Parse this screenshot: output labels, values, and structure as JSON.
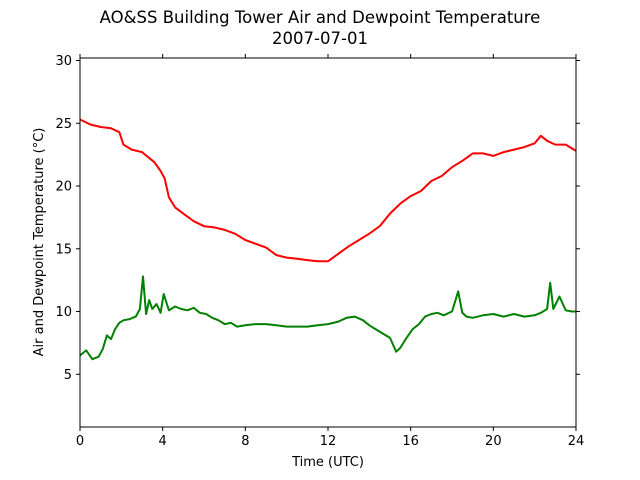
{
  "chart_data": {
    "type": "line",
    "title": "AO&SS Building Tower Air and Dewpoint Temperature",
    "subtitle": "2007-07-01",
    "xlabel": "Time (UTC)",
    "ylabel": "Air and Dewpoint Temperature (°C)",
    "xlim": [
      0,
      24
    ],
    "ylim": [
      0.8,
      30.2
    ],
    "xticks": [
      0,
      4,
      8,
      12,
      16,
      20,
      24
    ],
    "yticks": [
      5,
      10,
      15,
      20,
      25,
      30
    ],
    "grid": false,
    "colors": {
      "air": "#ff0000",
      "dewpoint": "#008000"
    },
    "series": [
      {
        "key": "air",
        "x": [
          0,
          0.25,
          0.5,
          1.0,
          1.5,
          1.9,
          2.1,
          2.5,
          3.0,
          3.3,
          3.6,
          3.9,
          4.1,
          4.3,
          4.6,
          5.0,
          5.5,
          6.0,
          6.5,
          7.0,
          7.5,
          8.0,
          8.5,
          9.0,
          9.5,
          10.0,
          10.5,
          11.0,
          11.5,
          12.0,
          12.5,
          13.0,
          13.5,
          14.0,
          14.5,
          15.0,
          15.5,
          16.0,
          16.5,
          17.0,
          17.5,
          18.0,
          18.5,
          19.0,
          19.5,
          20.0,
          20.5,
          21.0,
          21.5,
          22.0,
          22.3,
          22.6,
          23.0,
          23.5,
          24.0
        ],
        "y": [
          25.3,
          25.1,
          24.9,
          24.7,
          24.6,
          24.3,
          23.3,
          22.9,
          22.7,
          22.3,
          21.9,
          21.2,
          20.6,
          19.1,
          18.3,
          17.8,
          17.2,
          16.8,
          16.7,
          16.5,
          16.2,
          15.7,
          15.4,
          15.1,
          14.5,
          14.3,
          14.2,
          14.1,
          14.0,
          14.0,
          14.6,
          15.2,
          15.7,
          16.2,
          16.8,
          17.8,
          18.6,
          19.2,
          19.6,
          20.4,
          20.8,
          21.5,
          22.0,
          22.6,
          22.6,
          22.4,
          22.7,
          22.9,
          23.1,
          23.4,
          24.0,
          23.6,
          23.3,
          23.3,
          22.8
        ]
      },
      {
        "key": "dewpoint",
        "x": [
          0,
          0.3,
          0.6,
          0.9,
          1.1,
          1.3,
          1.5,
          1.7,
          1.9,
          2.1,
          2.4,
          2.7,
          2.9,
          3.05,
          3.2,
          3.35,
          3.5,
          3.7,
          3.9,
          4.05,
          4.3,
          4.6,
          4.9,
          5.2,
          5.5,
          5.8,
          6.1,
          6.4,
          6.7,
          7.0,
          7.3,
          7.6,
          8.0,
          8.5,
          9.0,
          9.5,
          10.0,
          10.5,
          11.0,
          11.5,
          12.0,
          12.5,
          12.9,
          13.3,
          13.7,
          14.0,
          14.3,
          14.6,
          15.0,
          15.3,
          15.5,
          15.8,
          16.1,
          16.4,
          16.7,
          17.0,
          17.3,
          17.6,
          18.0,
          18.3,
          18.5,
          18.7,
          19.0,
          19.5,
          20.0,
          20.5,
          21.0,
          21.5,
          22.0,
          22.3,
          22.6,
          22.75,
          22.9,
          23.2,
          23.5,
          23.8,
          24.0
        ],
        "y": [
          6.5,
          6.9,
          6.2,
          6.4,
          7.0,
          8.1,
          7.8,
          8.6,
          9.1,
          9.3,
          9.4,
          9.6,
          10.2,
          12.8,
          9.8,
          10.9,
          10.2,
          10.6,
          9.9,
          11.4,
          10.1,
          10.4,
          10.2,
          10.1,
          10.3,
          9.9,
          9.8,
          9.5,
          9.3,
          9.0,
          9.1,
          8.8,
          8.9,
          9.0,
          9.0,
          8.9,
          8.8,
          8.8,
          8.8,
          8.9,
          9.0,
          9.2,
          9.5,
          9.6,
          9.3,
          8.9,
          8.6,
          8.3,
          7.9,
          6.8,
          7.1,
          7.9,
          8.6,
          9.0,
          9.6,
          9.8,
          9.9,
          9.7,
          10.0,
          11.6,
          9.9,
          9.6,
          9.5,
          9.7,
          9.8,
          9.6,
          9.8,
          9.6,
          9.7,
          9.9,
          10.2,
          12.3,
          10.2,
          11.2,
          10.1,
          10.0,
          10.0
        ]
      }
    ]
  }
}
